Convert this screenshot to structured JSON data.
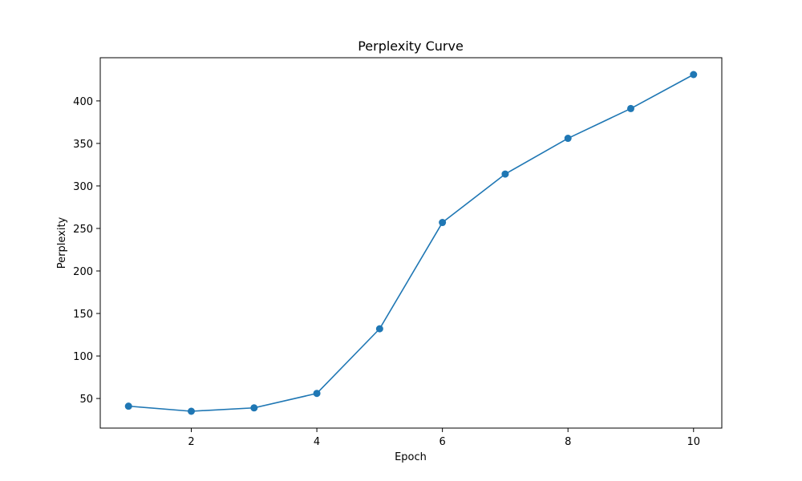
{
  "chart_data": {
    "type": "line",
    "title": "Perplexity Curve",
    "xlabel": "Epoch",
    "ylabel": "Perplexity",
    "x": [
      1,
      2,
      3,
      4,
      5,
      6,
      7,
      8,
      9,
      10
    ],
    "series": [
      {
        "values": [
          41,
          35,
          39,
          56,
          132,
          257,
          314,
          356,
          391,
          431
        ],
        "color": "#1f77b4",
        "marker": "circle"
      }
    ],
    "xlim": [
      0.55,
      10.45
    ],
    "ylim": [
      15.2,
      450.8
    ],
    "xticks": [
      2,
      4,
      6,
      8,
      10
    ],
    "yticks": [
      50,
      100,
      150,
      200,
      250,
      300,
      350,
      400
    ],
    "grid": false,
    "legend": false
  }
}
